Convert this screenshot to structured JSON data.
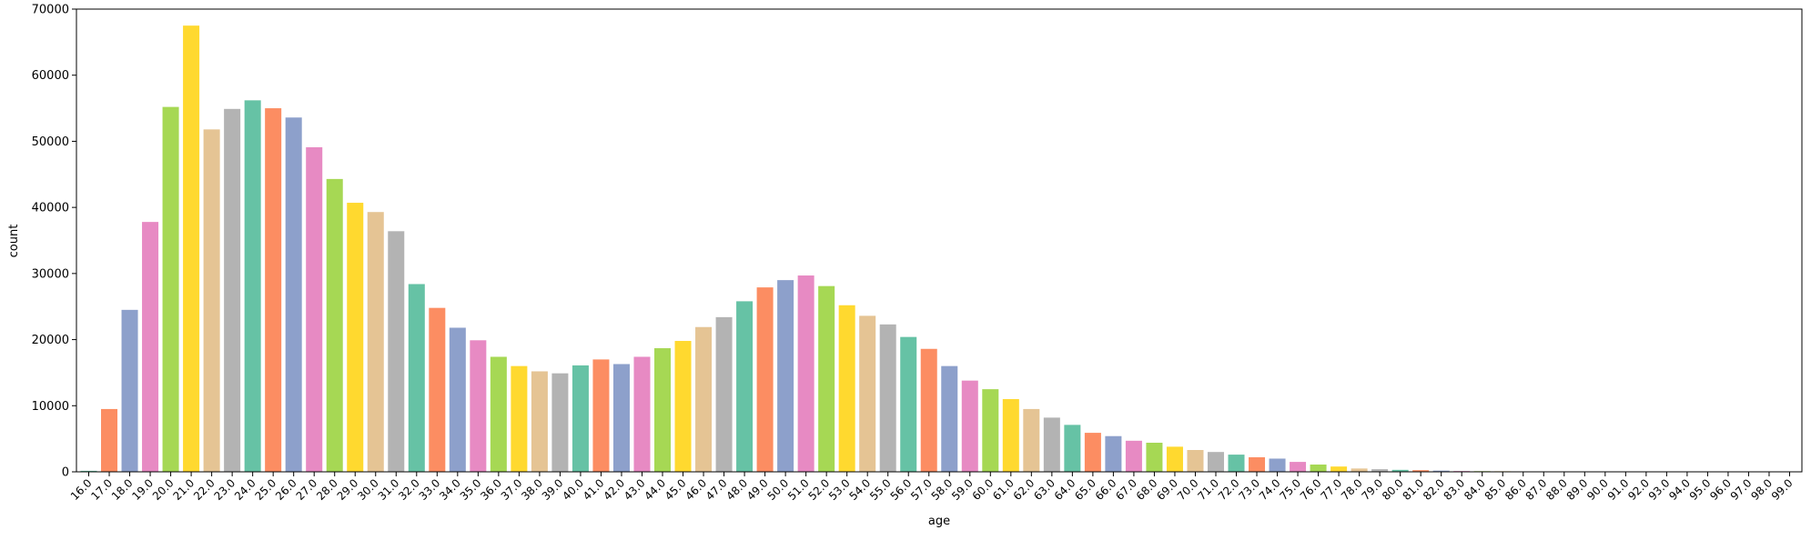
{
  "chart_data": {
    "type": "bar",
    "xlabel": "age",
    "ylabel": "count",
    "ylim": [
      0,
      70000
    ],
    "yticks": [
      0,
      10000,
      20000,
      30000,
      40000,
      50000,
      60000,
      70000
    ],
    "grid": false,
    "palette": [
      "#66c2a5",
      "#fc8d62",
      "#8da0cb",
      "#e78ac3",
      "#a6d854",
      "#ffd92f",
      "#e5c494",
      "#b3b3b3"
    ],
    "categories": [
      "16.0",
      "17.0",
      "18.0",
      "19.0",
      "20.0",
      "21.0",
      "22.0",
      "23.0",
      "24.0",
      "25.0",
      "26.0",
      "27.0",
      "28.0",
      "29.0",
      "30.0",
      "31.0",
      "32.0",
      "33.0",
      "34.0",
      "35.0",
      "36.0",
      "37.0",
      "38.0",
      "39.0",
      "40.0",
      "41.0",
      "42.0",
      "43.0",
      "44.0",
      "45.0",
      "46.0",
      "47.0",
      "48.0",
      "49.0",
      "50.0",
      "51.0",
      "52.0",
      "53.0",
      "54.0",
      "55.0",
      "56.0",
      "57.0",
      "58.0",
      "59.0",
      "60.0",
      "61.0",
      "62.0",
      "63.0",
      "64.0",
      "65.0",
      "66.0",
      "67.0",
      "68.0",
      "69.0",
      "70.0",
      "71.0",
      "72.0",
      "73.0",
      "74.0",
      "75.0",
      "76.0",
      "77.0",
      "78.0",
      "79.0",
      "80.0",
      "81.0",
      "82.0",
      "83.0",
      "84.0",
      "85.0",
      "86.0",
      "87.0",
      "88.0",
      "89.0",
      "90.0",
      "91.0",
      "92.0",
      "93.0",
      "94.0",
      "95.0",
      "96.0",
      "97.0",
      "98.0",
      "99.0"
    ],
    "values": [
      150,
      9500,
      24500,
      37800,
      55200,
      67500,
      51800,
      54900,
      56200,
      55000,
      53600,
      49100,
      44300,
      40700,
      39300,
      36400,
      28400,
      24800,
      21800,
      19900,
      17400,
      16000,
      15200,
      14900,
      16100,
      17000,
      16300,
      17400,
      18700,
      19800,
      21900,
      23400,
      25800,
      27900,
      29000,
      29700,
      28100,
      25200,
      23600,
      22300,
      20400,
      18600,
      16000,
      13800,
      12500,
      11000,
      9500,
      8200,
      7100,
      5900,
      5400,
      4700,
      4400,
      3800,
      3300,
      3000,
      2600,
      2200,
      2000,
      1500,
      1100,
      800,
      500,
      400,
      300,
      250,
      180,
      120,
      100,
      80,
      60,
      50,
      40,
      30,
      25,
      20,
      18,
      15,
      12,
      10,
      8,
      6,
      5,
      5
    ]
  }
}
